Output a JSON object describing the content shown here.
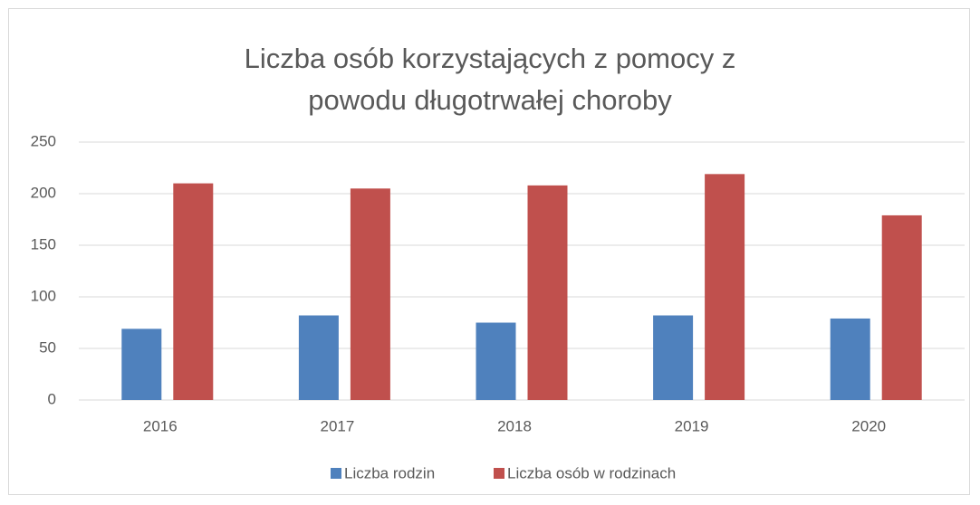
{
  "chart_data": {
    "type": "bar",
    "title": "Liczba osób korzystających z pomocy z powodu długotrwałej choroby",
    "categories": [
      "2016",
      "2017",
      "2018",
      "2019",
      "2020"
    ],
    "series": [
      {
        "name": "Liczba rodzin",
        "color": "#4f81bd",
        "values": [
          69,
          82,
          75,
          82,
          79
        ]
      },
      {
        "name": "Liczba osób w rodzinach",
        "color": "#c0504d",
        "values": [
          210,
          205,
          208,
          219,
          179
        ]
      }
    ],
    "ylim": [
      0,
      250
    ],
    "yticks": [
      0,
      50,
      100,
      150,
      200,
      250
    ],
    "grid": true,
    "legend": "bottom"
  }
}
